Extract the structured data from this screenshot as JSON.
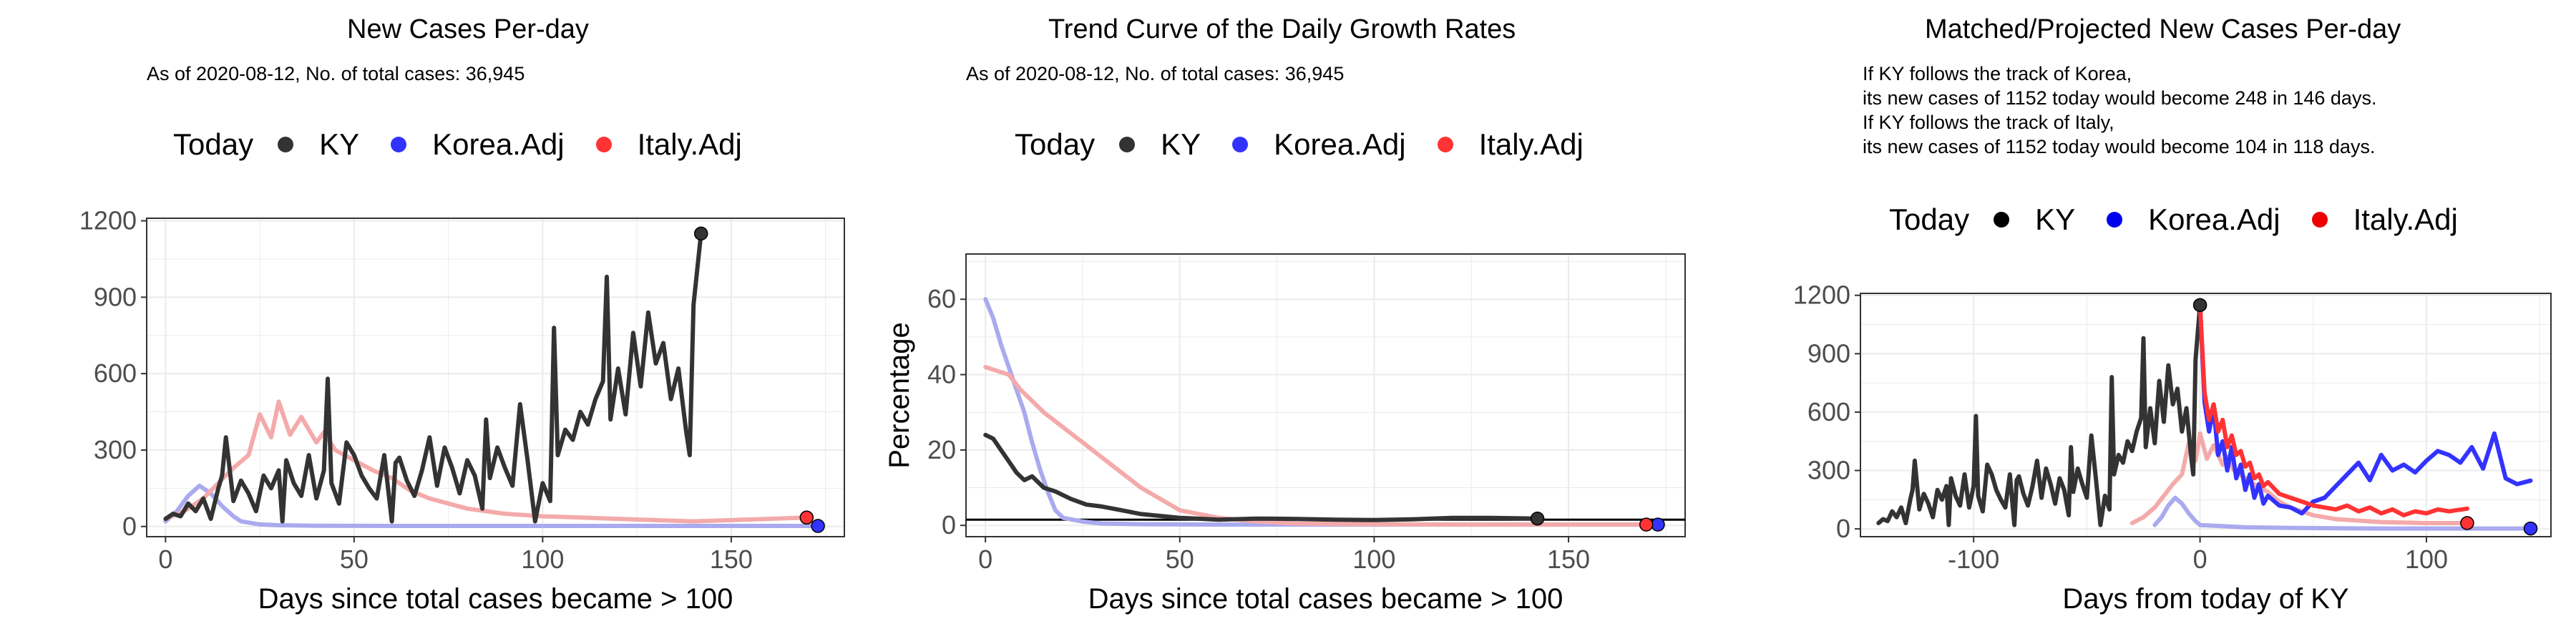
{
  "colors": {
    "ky": "#333333",
    "korea": "#3333ff",
    "italy": "#ff3333",
    "korea_faint": "#aaaaee",
    "italy_faint": "#f4aaaa"
  },
  "chart_data": [
    {
      "type": "line",
      "title": "New Cases Per-day",
      "subtitle": "As of 2020-08-12, No. of total cases: 36,945",
      "xlabel": "Days since total cases became > 100",
      "ylabel": "",
      "xlim": [
        -5,
        180
      ],
      "ylim": [
        -40,
        1210
      ],
      "xticks": [
        0,
        50,
        100,
        150
      ],
      "yticks": [
        0,
        300,
        600,
        900,
        1200
      ],
      "grid": true,
      "legend": {
        "title": "Today",
        "position": "top",
        "entries": [
          "KY",
          "Korea.Adj",
          "Italy.Adj"
        ]
      },
      "series": [
        {
          "name": "KY",
          "color": "#333333",
          "x": [
            0,
            2,
            4,
            6,
            8,
            10,
            12,
            14,
            15,
            16,
            18,
            20,
            22,
            24,
            26,
            28,
            30,
            31,
            32,
            34,
            36,
            38,
            40,
            42,
            43,
            44,
            46,
            48,
            50,
            52,
            54,
            56,
            58,
            60,
            61,
            62,
            64,
            66,
            68,
            70,
            72,
            74,
            76,
            78,
            80,
            82,
            84,
            85,
            86,
            88,
            90,
            92,
            94,
            96,
            98,
            100,
            102,
            103,
            104,
            106,
            108,
            110,
            112,
            114,
            116,
            117,
            118,
            120,
            122,
            124,
            126,
            128,
            130,
            132,
            134,
            136,
            138,
            139,
            140,
            142
          ],
          "y": [
            30,
            50,
            40,
            90,
            60,
            110,
            30,
            150,
            200,
            350,
            100,
            180,
            130,
            60,
            200,
            150,
            220,
            20,
            260,
            170,
            120,
            280,
            110,
            220,
            580,
            170,
            90,
            330,
            280,
            200,
            150,
            110,
            280,
            20,
            250,
            270,
            180,
            120,
            220,
            350,
            160,
            310,
            230,
            130,
            260,
            200,
            70,
            420,
            190,
            310,
            230,
            160,
            480,
            260,
            20,
            170,
            100,
            780,
            280,
            380,
            340,
            450,
            400,
            500,
            570,
            980,
            420,
            620,
            440,
            760,
            550,
            840,
            640,
            720,
            500,
            620,
            380,
            280,
            870,
            1150
          ]
        },
        {
          "name": "Korea.Adj",
          "color": "#3333ff",
          "faint": true,
          "x": [
            0,
            3,
            6,
            9,
            12,
            15,
            18,
            20,
            25,
            30,
            40,
            60,
            80,
            100,
            120,
            140,
            160,
            173
          ],
          "y": [
            20,
            60,
            120,
            160,
            130,
            80,
            40,
            20,
            8,
            5,
            3,
            2,
            2,
            2,
            2,
            2,
            2,
            2
          ]
        },
        {
          "name": "Italy.Adj",
          "color": "#ff3333",
          "faint": true,
          "x": [
            0,
            5,
            10,
            14,
            18,
            22,
            25,
            28,
            30,
            33,
            36,
            40,
            42,
            45,
            50,
            55,
            60,
            65,
            70,
            75,
            80,
            85,
            90,
            100,
            110,
            120,
            130,
            140,
            150,
            160,
            170
          ],
          "y": [
            30,
            60,
            110,
            170,
            230,
            280,
            440,
            350,
            490,
            360,
            430,
            330,
            370,
            300,
            260,
            220,
            190,
            140,
            110,
            90,
            70,
            60,
            50,
            40,
            35,
            30,
            25,
            20,
            25,
            30,
            35
          ]
        }
      ],
      "today_points": [
        {
          "name": "KY",
          "x": 142,
          "y": 1150
        },
        {
          "name": "Korea.Adj",
          "x": 173,
          "y": 2
        },
        {
          "name": "Italy.Adj",
          "x": 170,
          "y": 35
        }
      ]
    },
    {
      "type": "line",
      "title": "Trend Curve of the Daily Growth Rates",
      "subtitle": "As of 2020-08-12, No. of total cases: 36,945",
      "xlabel": "Days since total cases became > 100",
      "ylabel": "Percentage",
      "xlim": [
        -5,
        180
      ],
      "ylim": [
        -3,
        72
      ],
      "xticks": [
        0,
        50,
        100,
        150
      ],
      "yticks": [
        0,
        20,
        40,
        60
      ],
      "hline": 1.5,
      "grid": true,
      "legend": {
        "title": "Today",
        "position": "top",
        "entries": [
          "KY",
          "Korea.Adj",
          "Italy.Adj"
        ]
      },
      "series": [
        {
          "name": "KY",
          "color": "#333333",
          "x": [
            0,
            2,
            4,
            6,
            8,
            10,
            12,
            15,
            18,
            22,
            26,
            30,
            35,
            40,
            50,
            60,
            70,
            80,
            90,
            100,
            110,
            120,
            130,
            142
          ],
          "y": [
            24,
            23,
            20,
            17,
            14,
            12,
            13,
            10,
            9,
            7,
            5.5,
            5,
            4,
            3,
            2,
            1.5,
            1.8,
            1.7,
            1.5,
            1.4,
            1.6,
            2,
            2,
            1.8
          ]
        },
        {
          "name": "Korea.Adj",
          "color": "#3333ff",
          "faint": true,
          "x": [
            0,
            2,
            4,
            6,
            8,
            10,
            12,
            14,
            16,
            18,
            20,
            25,
            30,
            40,
            60,
            100,
            140,
            173
          ],
          "y": [
            60,
            55,
            48,
            42,
            36,
            30,
            22,
            15,
            9,
            4,
            2,
            1,
            0.5,
            0.3,
            0.2,
            0.2,
            0.2,
            0.2
          ]
        },
        {
          "name": "Italy.Adj",
          "color": "#ff3333",
          "faint": true,
          "x": [
            0,
            3,
            6,
            9,
            12,
            15,
            20,
            25,
            30,
            35,
            40,
            45,
            50,
            60,
            70,
            80,
            100,
            120,
            140,
            170
          ],
          "y": [
            42,
            41,
            40,
            36,
            33,
            30,
            26,
            22,
            18,
            14,
            10,
            7,
            4,
            2,
            1,
            0.5,
            0.3,
            0.2,
            0.2,
            0.2
          ]
        }
      ],
      "today_points": [
        {
          "name": "KY",
          "x": 142,
          "y": 1.8
        },
        {
          "name": "Korea.Adj",
          "x": 173,
          "y": 0.2
        },
        {
          "name": "Italy.Adj",
          "x": 170,
          "y": 0.2
        }
      ]
    },
    {
      "type": "line",
      "title": "Matched/Projected New Cases Per-day",
      "notes": [
        "If KY follows the track of Korea,",
        "its new cases of 1152 today would become 248 in 146 days.",
        "If KY follows the track of Italy,",
        "its new cases of 1152 today would become 104 in 118 days."
      ],
      "xlabel": "Days from today of KY",
      "ylabel": "",
      "xlim": [
        -150,
        155
      ],
      "ylim": [
        -40,
        1210
      ],
      "xticks": [
        -100,
        0,
        100
      ],
      "yticks": [
        0,
        300,
        600,
        900,
        1200
      ],
      "grid": true,
      "legend": {
        "title": "Today",
        "position": "top",
        "entries": [
          "KY",
          "Korea.Adj",
          "Italy.Adj"
        ]
      },
      "series": [
        {
          "name": "KY",
          "color": "#333333",
          "x": [
            -142,
            -140,
            -138,
            -136,
            -134,
            -132,
            -130,
            -128,
            -127,
            -126,
            -124,
            -122,
            -120,
            -118,
            -116,
            -114,
            -112,
            -111,
            -110,
            -108,
            -106,
            -104,
            -102,
            -100,
            -99,
            -98,
            -96,
            -94,
            -92,
            -90,
            -88,
            -86,
            -84,
            -82,
            -81,
            -80,
            -78,
            -76,
            -74,
            -72,
            -70,
            -68,
            -66,
            -64,
            -62,
            -60,
            -58,
            -57,
            -56,
            -54,
            -52,
            -50,
            -48,
            -46,
            -44,
            -42,
            -40,
            -39,
            -38,
            -36,
            -34,
            -32,
            -30,
            -28,
            -26,
            -25,
            -24,
            -22,
            -20,
            -18,
            -16,
            -14,
            -12,
            -10,
            -8,
            -6,
            -4,
            -3,
            -2,
            0
          ],
          "y": [
            30,
            50,
            40,
            90,
            60,
            110,
            30,
            150,
            200,
            350,
            100,
            180,
            130,
            60,
            200,
            150,
            220,
            20,
            260,
            170,
            120,
            280,
            110,
            220,
            580,
            170,
            90,
            330,
            280,
            200,
            150,
            110,
            280,
            20,
            250,
            270,
            180,
            120,
            220,
            350,
            160,
            310,
            230,
            130,
            260,
            200,
            70,
            420,
            190,
            310,
            230,
            160,
            480,
            260,
            20,
            170,
            100,
            780,
            280,
            380,
            340,
            450,
            400,
            500,
            570,
            980,
            420,
            620,
            440,
            760,
            550,
            840,
            640,
            720,
            500,
            620,
            380,
            280,
            870,
            1150
          ]
        },
        {
          "name": "Korea.Adj",
          "color": "#3333ff",
          "x": [
            0,
            2,
            4,
            6,
            8,
            10,
            12,
            14,
            16,
            18,
            20,
            22,
            24,
            26,
            28,
            30,
            35,
            40,
            45,
            50,
            55,
            60,
            65,
            70,
            75,
            80,
            85,
            90,
            95,
            100,
            105,
            110,
            115,
            120,
            125,
            130,
            135,
            140,
            146
          ],
          "y": [
            1150,
            650,
            500,
            620,
            380,
            450,
            300,
            420,
            260,
            330,
            200,
            280,
            160,
            230,
            130,
            170,
            120,
            110,
            80,
            140,
            160,
            220,
            280,
            340,
            250,
            380,
            300,
            330,
            290,
            350,
            400,
            380,
            340,
            420,
            310,
            490,
            260,
            230,
            248
          ]
        },
        {
          "name": "Italy.Adj",
          "color": "#ff3333",
          "x": [
            0,
            2,
            4,
            6,
            8,
            10,
            12,
            14,
            16,
            18,
            20,
            22,
            24,
            26,
            28,
            30,
            35,
            40,
            45,
            50,
            55,
            60,
            65,
            70,
            75,
            80,
            85,
            90,
            95,
            100,
            105,
            110,
            118
          ],
          "y": [
            1150,
            700,
            560,
            640,
            500,
            560,
            420,
            480,
            380,
            400,
            320,
            340,
            260,
            280,
            220,
            240,
            180,
            160,
            140,
            120,
            110,
            100,
            120,
            90,
            110,
            80,
            100,
            70,
            90,
            80,
            100,
            90,
            104
          ]
        },
        {
          "name": "Korea.Adj past",
          "color": "#3333ff",
          "faint": true,
          "x": [
            -20,
            -17,
            -14,
            -11,
            -8,
            -5,
            -2,
            0,
            20,
            40,
            60,
            80,
            100,
            120,
            146
          ],
          "y": [
            20,
            60,
            120,
            160,
            130,
            80,
            40,
            20,
            8,
            5,
            3,
            2,
            2,
            2,
            2
          ]
        },
        {
          "name": "Italy.Adj past",
          "color": "#ff3333",
          "faint": true,
          "x": [
            -30,
            -25,
            -20,
            -16,
            -12,
            -8,
            -5,
            -2,
            0,
            3,
            6,
            10,
            12,
            15,
            20,
            25,
            30,
            35,
            40,
            50,
            60,
            80,
            100,
            118
          ],
          "y": [
            30,
            60,
            110,
            170,
            230,
            280,
            440,
            350,
            490,
            360,
            430,
            330,
            370,
            300,
            260,
            220,
            190,
            140,
            110,
            70,
            50,
            35,
            30,
            30
          ]
        }
      ],
      "today_points": [
        {
          "name": "KY",
          "x": 0,
          "y": 1150
        },
        {
          "name": "Korea.Adj",
          "x": 146,
          "y": 2
        },
        {
          "name": "Italy.Adj",
          "x": 118,
          "y": 30
        }
      ]
    }
  ]
}
